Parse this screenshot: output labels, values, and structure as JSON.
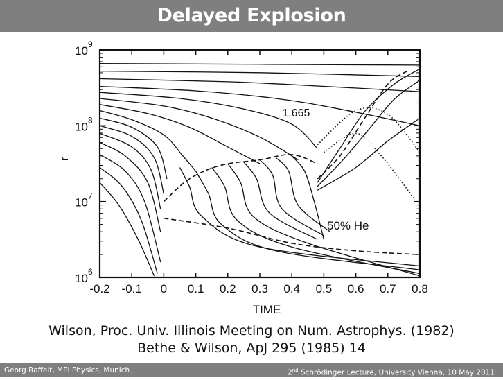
{
  "slide": {
    "title": "Delayed Explosion",
    "caption_line1": "Wilson, Proc. Univ. Illinois Meeting on Num. Astrophys. (1982)",
    "caption_line2": "Bethe & Wilson, ApJ 295 (1985) 14",
    "footer_left": "Georg Raffelt, MPI Physics, Munich",
    "footer_right_ordinal": "2",
    "footer_right_sup": "nd",
    "footer_right_text": " Schrödinger Lecture, University Vienna, 10 May 2011"
  },
  "colors": {
    "bar": "#7f7f7f",
    "ink": "#111111"
  },
  "chart_data": {
    "type": "line",
    "xlabel": "TIME",
    "ylabel": "r",
    "xlim": [
      -0.2,
      0.8
    ],
    "ylim_log10": [
      6,
      9
    ],
    "log_y": true,
    "x_ticks": [
      "-0.2",
      "-0.1",
      "0",
      "0.1",
      "0.2",
      "0.3",
      "0.4",
      "0.5",
      "0.6",
      "0.7",
      "0.8"
    ],
    "y_ticks": [
      {
        "base": "10",
        "exp": "6"
      },
      {
        "base": "10",
        "exp": "7"
      },
      {
        "base": "10",
        "exp": "8"
      },
      {
        "base": "10",
        "exp": "9"
      }
    ],
    "annotations": [
      "1.665",
      "50% He"
    ],
    "grid": false,
    "legend": "none",
    "series": [
      {
        "style": "solid",
        "points": [
          [
            -0.2,
            8.82
          ],
          [
            0.8,
            8.8
          ]
        ]
      },
      {
        "style": "solid",
        "points": [
          [
            -0.2,
            8.72
          ],
          [
            0.3,
            8.7
          ],
          [
            0.8,
            8.65
          ]
        ]
      },
      {
        "style": "solid",
        "points": [
          [
            -0.2,
            8.62
          ],
          [
            0.2,
            8.58
          ],
          [
            0.5,
            8.52
          ],
          [
            0.8,
            8.45
          ]
        ]
      },
      {
        "style": "solid",
        "points": [
          [
            -0.2,
            8.52
          ],
          [
            0.1,
            8.46
          ],
          [
            0.35,
            8.36
          ],
          [
            0.55,
            8.22
          ],
          [
            0.8,
            8.0
          ]
        ]
      },
      {
        "style": "solid",
        "points": [
          [
            -0.2,
            8.44
          ],
          [
            0.05,
            8.36
          ],
          [
            0.25,
            8.22
          ],
          [
            0.4,
            8.02
          ],
          [
            0.48,
            7.7
          ]
        ]
      },
      {
        "style": "solid",
        "points": [
          [
            -0.2,
            8.36
          ],
          [
            0.0,
            8.26
          ],
          [
            0.15,
            8.1
          ],
          [
            0.3,
            7.85
          ],
          [
            0.42,
            7.55
          ]
        ]
      },
      {
        "style": "solid",
        "points": [
          [
            -0.2,
            8.28
          ],
          [
            -0.05,
            8.16
          ],
          [
            0.08,
            7.98
          ],
          [
            0.2,
            7.72
          ],
          [
            0.3,
            7.5
          ]
        ]
      },
      {
        "style": "solid",
        "points": [
          [
            -0.2,
            8.2
          ],
          [
            -0.1,
            8.08
          ],
          [
            0.0,
            7.88
          ],
          [
            0.06,
            7.6
          ],
          [
            0.1,
            7.4
          ]
        ]
      },
      {
        "style": "solid",
        "points": [
          [
            -0.2,
            8.1
          ],
          [
            -0.1,
            7.98
          ],
          [
            -0.02,
            7.72
          ],
          [
            0.01,
            7.3
          ]
        ]
      },
      {
        "style": "solid",
        "points": [
          [
            -0.2,
            8.0
          ],
          [
            -0.1,
            7.86
          ],
          [
            -0.03,
            7.58
          ],
          [
            0.0,
            7.1
          ]
        ]
      },
      {
        "style": "solid",
        "points": [
          [
            -0.2,
            7.9
          ],
          [
            -0.1,
            7.72
          ],
          [
            -0.04,
            7.42
          ],
          [
            -0.01,
            6.9
          ]
        ]
      },
      {
        "style": "solid",
        "points": [
          [
            -0.2,
            7.78
          ],
          [
            -0.12,
            7.6
          ],
          [
            -0.05,
            7.25
          ],
          [
            -0.01,
            6.6
          ]
        ]
      },
      {
        "style": "solid",
        "points": [
          [
            -0.2,
            7.62
          ],
          [
            -0.12,
            7.4
          ],
          [
            -0.06,
            7.0
          ],
          [
            -0.01,
            6.2
          ]
        ]
      },
      {
        "style": "solid",
        "points": [
          [
            -0.2,
            7.45
          ],
          [
            -0.13,
            7.2
          ],
          [
            -0.07,
            6.75
          ],
          [
            -0.02,
            6.05
          ]
        ]
      },
      {
        "style": "solid",
        "points": [
          [
            -0.2,
            7.25
          ],
          [
            -0.14,
            6.95
          ],
          [
            -0.08,
            6.5
          ],
          [
            -0.03,
            6.02
          ]
        ]
      },
      {
        "style": "dashed",
        "points": [
          [
            0.0,
            7.0
          ],
          [
            0.08,
            7.3
          ],
          [
            0.18,
            7.48
          ],
          [
            0.3,
            7.55
          ],
          [
            0.4,
            7.62
          ],
          [
            0.48,
            7.5
          ]
        ]
      },
      {
        "style": "dashed",
        "points": [
          [
            0.0,
            6.78
          ],
          [
            0.2,
            6.65
          ],
          [
            0.4,
            6.45
          ],
          [
            0.6,
            6.35
          ],
          [
            0.8,
            6.3
          ]
        ]
      },
      {
        "style": "dashed",
        "points": [
          [
            0.48,
            7.3
          ],
          [
            0.55,
            7.6
          ],
          [
            0.62,
            8.05
          ],
          [
            0.7,
            8.55
          ],
          [
            0.76,
            8.72
          ]
        ]
      },
      {
        "style": "dotted",
        "points": [
          [
            0.5,
            7.65
          ],
          [
            0.6,
            7.9
          ],
          [
            0.68,
            7.6
          ],
          [
            0.78,
            7.05
          ]
        ]
      },
      {
        "style": "dotted",
        "points": [
          [
            0.48,
            7.75
          ],
          [
            0.6,
            8.2
          ],
          [
            0.7,
            8.15
          ],
          [
            0.8,
            7.65
          ]
        ]
      },
      {
        "style": "solid",
        "points": [
          [
            0.48,
            7.2
          ],
          [
            0.56,
            7.55
          ],
          [
            0.64,
            7.95
          ],
          [
            0.72,
            8.35
          ],
          [
            0.8,
            8.6
          ]
        ]
      },
      {
        "style": "solid",
        "points": [
          [
            0.48,
            7.25
          ],
          [
            0.55,
            7.7
          ],
          [
            0.63,
            8.2
          ],
          [
            0.72,
            8.55
          ],
          [
            0.8,
            8.75
          ]
        ]
      },
      {
        "style": "solid",
        "points": [
          [
            0.48,
            7.15
          ],
          [
            0.6,
            7.45
          ],
          [
            0.7,
            7.8
          ],
          [
            0.8,
            8.1
          ]
        ]
      },
      {
        "style": "solid",
        "points": [
          [
            0.05,
            7.45
          ],
          [
            0.08,
            7.2
          ],
          [
            0.12,
            6.8
          ],
          [
            0.3,
            6.4
          ],
          [
            0.8,
            6.15
          ]
        ]
      },
      {
        "style": "solid",
        "points": [
          [
            0.1,
            7.4
          ],
          [
            0.14,
            7.1
          ],
          [
            0.18,
            6.7
          ],
          [
            0.35,
            6.35
          ],
          [
            0.8,
            6.1
          ]
        ]
      },
      {
        "style": "solid",
        "points": [
          [
            0.15,
            7.45
          ],
          [
            0.19,
            7.2
          ],
          [
            0.23,
            6.75
          ],
          [
            0.4,
            6.4
          ],
          [
            0.8,
            6.05
          ]
        ]
      },
      {
        "style": "solid",
        "points": [
          [
            0.2,
            7.5
          ],
          [
            0.24,
            7.25
          ],
          [
            0.28,
            6.8
          ],
          [
            0.45,
            6.45
          ],
          [
            0.8,
            6.02
          ]
        ]
      },
      {
        "style": "solid",
        "points": [
          [
            0.25,
            7.52
          ],
          [
            0.29,
            7.3
          ],
          [
            0.33,
            6.85
          ],
          [
            0.48,
            6.5
          ]
        ]
      },
      {
        "style": "solid",
        "points": [
          [
            0.3,
            7.55
          ],
          [
            0.34,
            7.35
          ],
          [
            0.37,
            6.9
          ],
          [
            0.5,
            6.55
          ]
        ]
      },
      {
        "style": "solid",
        "points": [
          [
            0.35,
            7.58
          ],
          [
            0.39,
            7.4
          ],
          [
            0.42,
            6.95
          ],
          [
            0.52,
            6.6
          ]
        ]
      },
      {
        "style": "solid",
        "points": [
          [
            0.4,
            7.6
          ],
          [
            0.44,
            7.4
          ],
          [
            0.47,
            7.0
          ],
          [
            0.5,
            6.5
          ]
        ]
      }
    ]
  }
}
